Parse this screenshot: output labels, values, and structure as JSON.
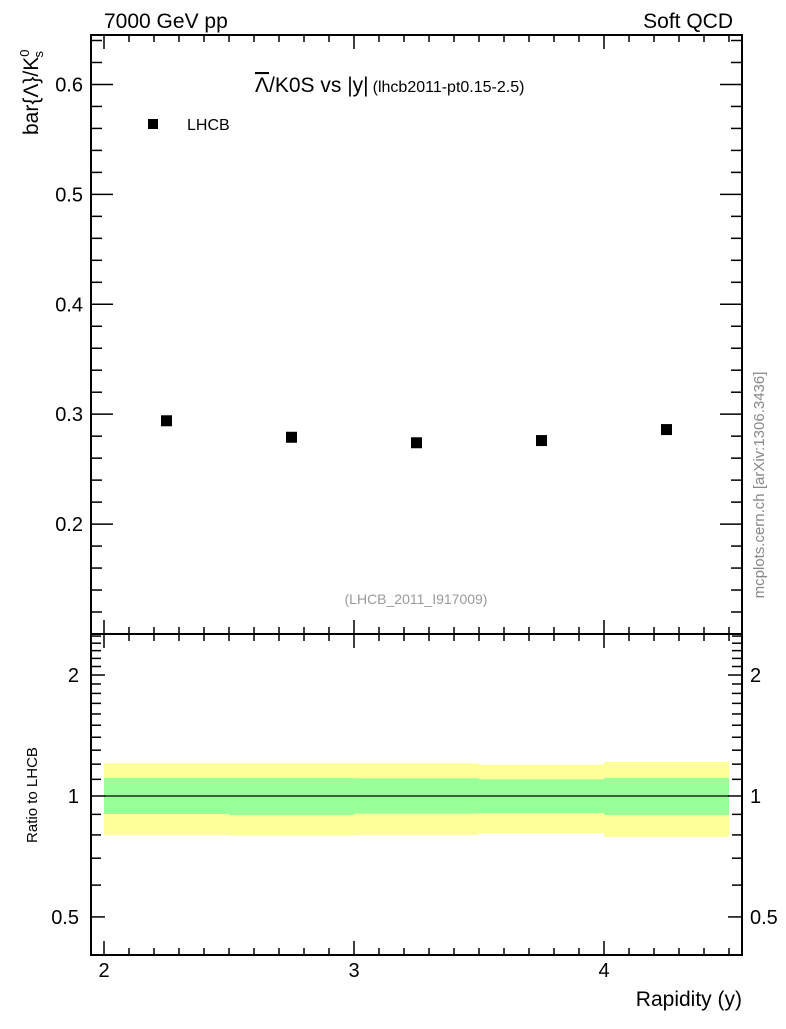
{
  "header": {
    "left": "7000 GeV pp",
    "right": "Soft QCD"
  },
  "side_label": "mcplots.cern.ch [arXiv:1306.3436]",
  "analysis_id": "(LHCB_2011_I917009)",
  "chart_data": [
    {
      "type": "scatter",
      "title_main": "/K0S vs |y|",
      "title_symbol": "Λ",
      "title_sub": "(lhcb2011-pt0.15-2.5)",
      "ylabel": "bar{Λ}/K",
      "ylabel_sup": "0",
      "ylabel_sub": "s",
      "xlim": [
        1.948,
        4.552
      ],
      "ylim": [
        0.1,
        0.645
      ],
      "yticks": [
        0.2,
        0.3,
        0.4,
        0.5,
        0.6
      ],
      "ytick_labels": [
        "0.2",
        "0.3",
        "0.4",
        "0.5",
        "0.6"
      ],
      "legend": {
        "position": "top-left",
        "entries": [
          "LHCB"
        ]
      },
      "series": [
        {
          "name": "LHCB",
          "color": "#000000",
          "x": [
            2.25,
            2.75,
            3.25,
            3.75,
            4.25
          ],
          "y": [
            0.294,
            0.279,
            0.274,
            0.276,
            0.286
          ]
        }
      ]
    },
    {
      "type": "area",
      "ylabel": "Ratio to LHCB",
      "xlabel": "Rapidity (y)",
      "yscale": "log",
      "xlim": [
        1.948,
        4.552
      ],
      "ylim": [
        0.402,
        2.53
      ],
      "xticks": [
        2,
        3,
        4
      ],
      "xtick_labels": [
        "2",
        "3",
        "4"
      ],
      "yticks": [
        0.5,
        1,
        2
      ],
      "ytick_labels": [
        "0.5",
        "1",
        "2"
      ],
      "bin_edges": [
        2.0,
        2.5,
        3.0,
        3.5,
        4.0,
        4.5
      ],
      "bands": [
        {
          "name": "total uncertainty",
          "color": "#ffff99",
          "lower": [
            0.8,
            0.797,
            0.8,
            0.809,
            0.791
          ],
          "upper": [
            1.206,
            1.206,
            1.206,
            1.196,
            1.215
          ]
        },
        {
          "name": "stat uncertainty",
          "color": "#99ff99",
          "lower": [
            0.902,
            0.897,
            0.904,
            0.907,
            0.897
          ],
          "upper": [
            1.109,
            1.109,
            1.107,
            1.1,
            1.109
          ]
        }
      ],
      "reference_line": 1
    }
  ]
}
